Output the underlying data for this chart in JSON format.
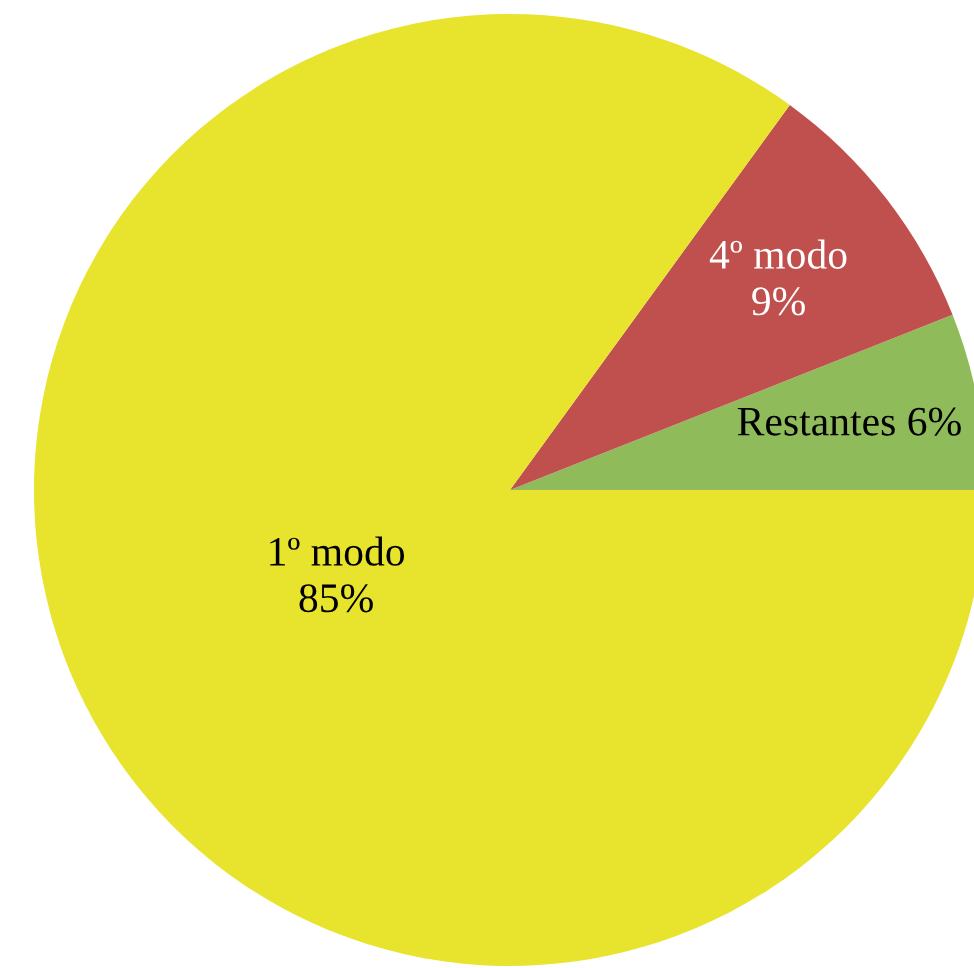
{
  "chart_data": {
    "type": "pie",
    "categories": [
      "Restantes",
      "4º modo",
      "1º modo"
    ],
    "values": [
      6,
      9,
      85
    ],
    "value_labels": [
      "6%",
      "9%",
      "85%"
    ],
    "colors": [
      "#8fbb5b",
      "#c0504d",
      "#e8e32c"
    ]
  }
}
